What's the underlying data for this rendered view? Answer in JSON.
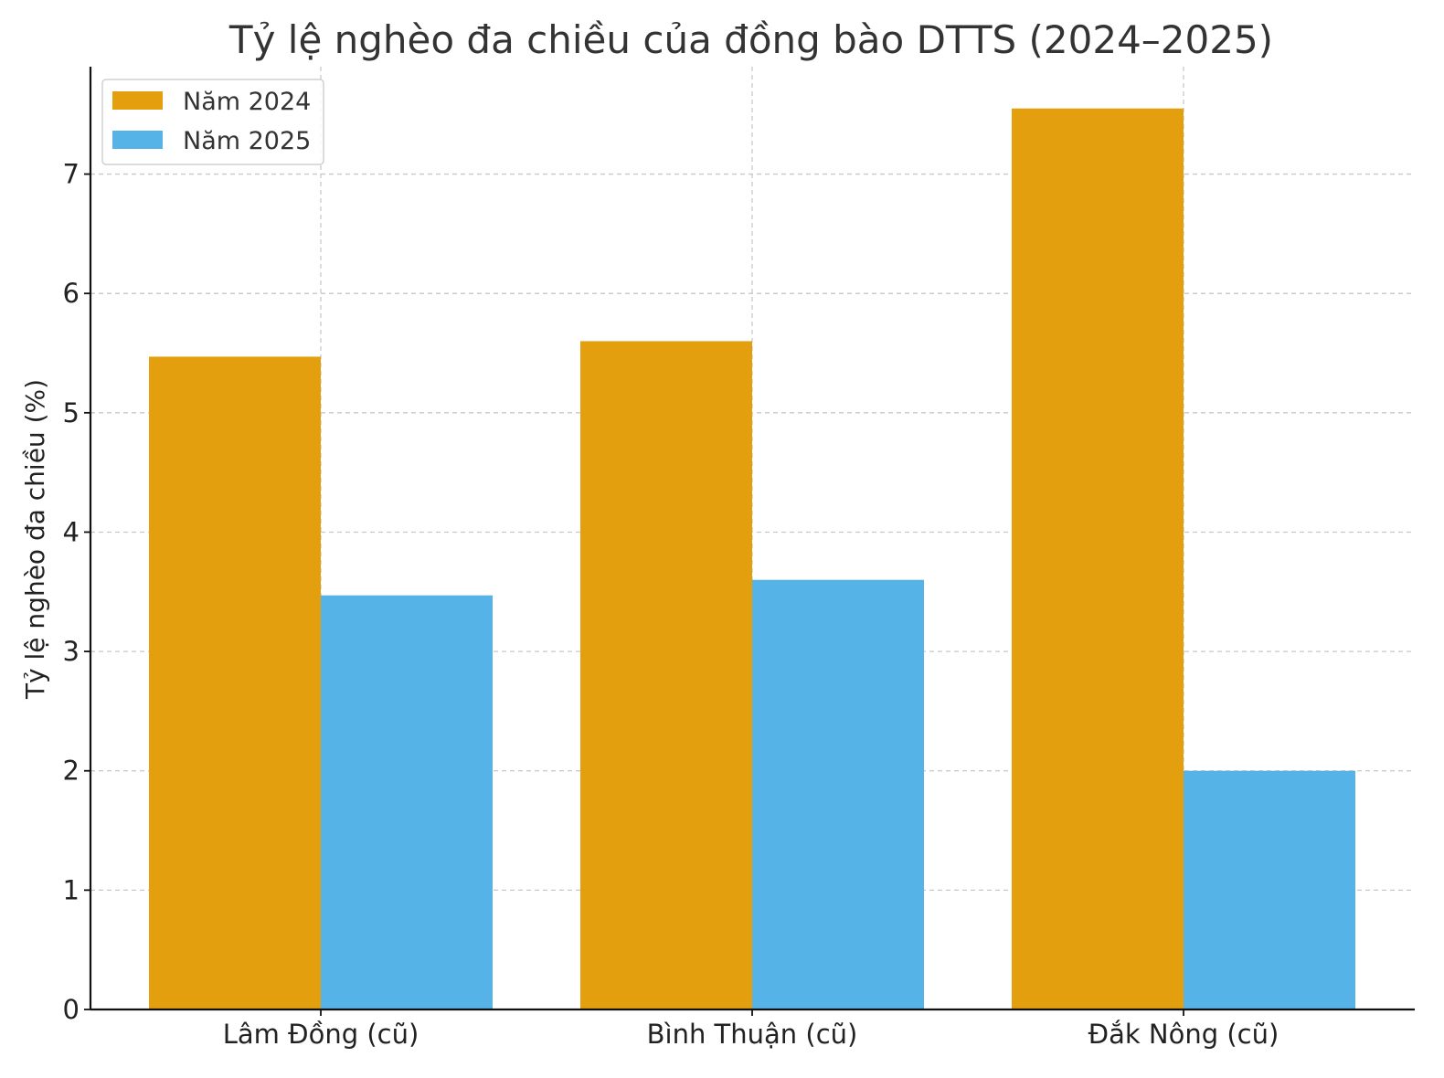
{
  "chart_data": {
    "type": "bar",
    "title": "Tỷ lệ nghèo đa chiều của đồng bào DTTS (2024–2025)",
    "xlabel": "",
    "ylabel": "Tỷ lệ nghèo đa chiều (%)",
    "categories": [
      "Lâm Đồng (cũ)",
      "Bình Thuận (cũ)",
      "Đắk Nông (cũ)"
    ],
    "series": [
      {
        "name": "Năm 2024",
        "values": [
          5.47,
          5.6,
          7.55
        ],
        "color": "#E39F0E"
      },
      {
        "name": "Năm 2025",
        "values": [
          3.47,
          3.6,
          2.0
        ],
        "color": "#56B3E8"
      }
    ],
    "ylim": [
      0,
      7.9
    ],
    "yticks": [
      0,
      1,
      2,
      3,
      4,
      5,
      6,
      7
    ],
    "grid": true,
    "legend_position": "top-left"
  }
}
